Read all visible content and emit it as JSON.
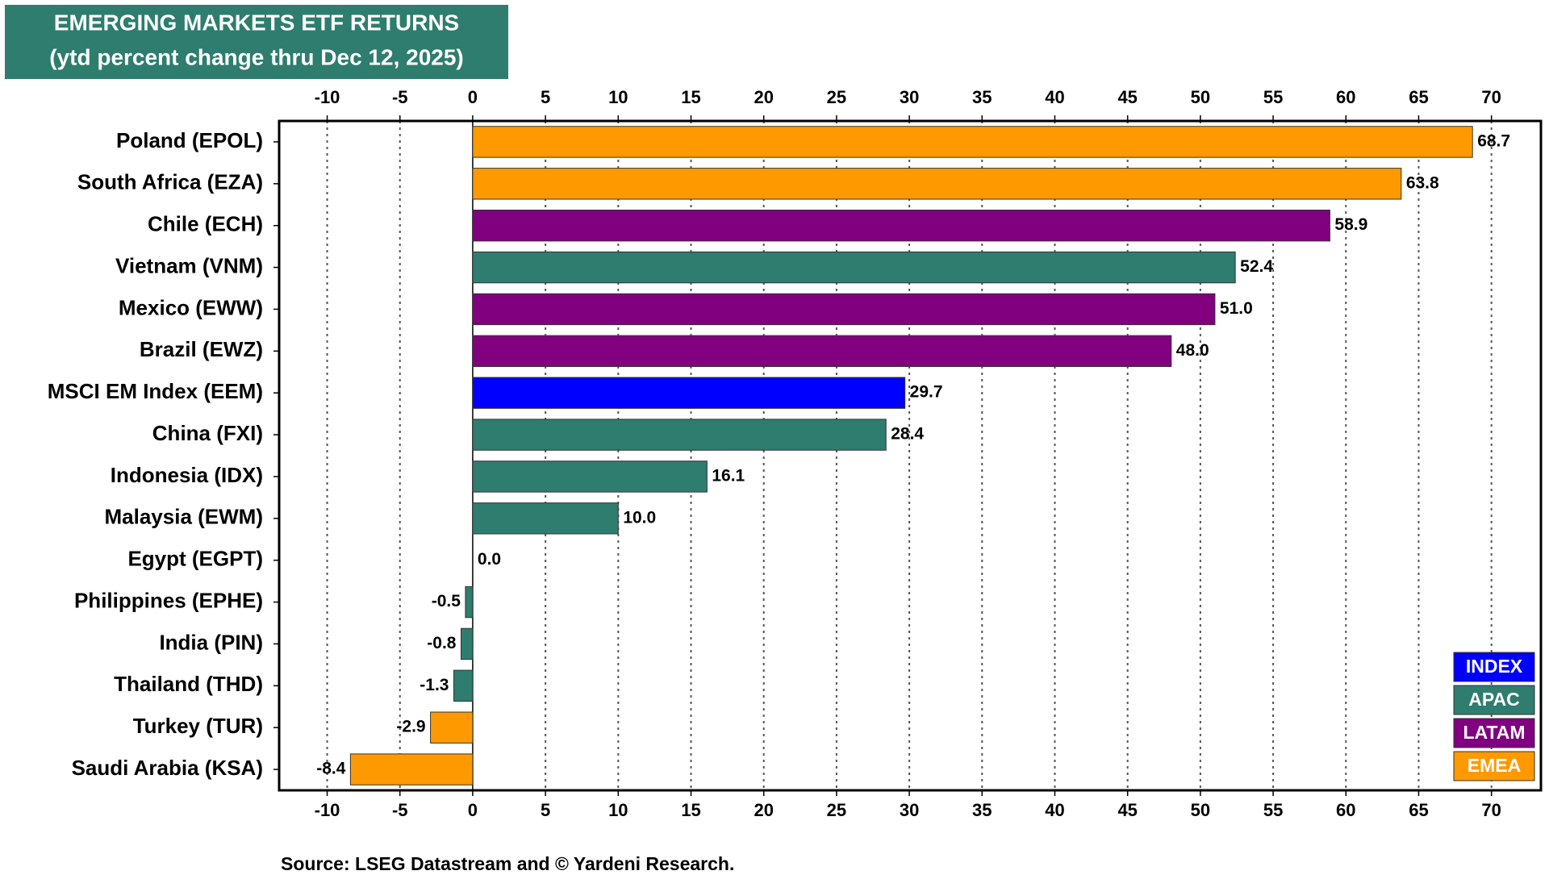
{
  "chart_data": {
    "type": "bar",
    "orientation": "horizontal",
    "title": "EMERGING MARKETS ETF RETURNS",
    "subtitle": "(ytd percent change thru Dec 12, 2025)",
    "source": "Source: LSEG Datastream and © Yardeni Research.",
    "categories": [
      "Poland (EPOL)",
      "South Africa (EZA)",
      "Chile (ECH)",
      "Vietnam (VNM)",
      "Mexico (EWW)",
      "Brazil (EWZ)",
      "MSCI EM Index (EEM)",
      "China (FXI)",
      "Indonesia (IDX)",
      "Malaysia (EWM)",
      "Egypt (EGPT)",
      "Philippines (EPHE)",
      "India (PIN)",
      "Thailand (THD)",
      "Turkey (TUR)",
      "Saudi Arabia (KSA)"
    ],
    "values": [
      68.7,
      63.8,
      58.9,
      52.4,
      51.0,
      48.0,
      29.7,
      28.4,
      16.1,
      10.0,
      0.0,
      -0.5,
      -0.8,
      -1.3,
      -2.9,
      -8.4
    ],
    "value_labels": [
      "68.7",
      "63.8",
      "58.9",
      "52.4",
      "51.0",
      "48.0",
      "29.7",
      "28.4",
      "16.1",
      "10.0",
      "0.0",
      "-0.5",
      "-0.8",
      "-1.3",
      "-2.9",
      "-8.4"
    ],
    "colors": [
      "#ff9900",
      "#ff9900",
      "#800080",
      "#2e7d6e",
      "#800080",
      "#800080",
      "#0000ff",
      "#2e7d6e",
      "#2e7d6e",
      "#2e7d6e",
      "#2e7d6e",
      "#2e7d6e",
      "#2e7d6e",
      "#2e7d6e",
      "#ff9900",
      "#ff9900"
    ],
    "legend": [
      {
        "name": "INDEX",
        "color": "#0000ff"
      },
      {
        "name": "APAC",
        "color": "#2e7d6e"
      },
      {
        "name": "LATAM",
        "color": "#800080"
      },
      {
        "name": "EMEA",
        "color": "#ff9900"
      }
    ],
    "legend_position": "bottom-right",
    "xlim": [
      -13.3,
      73.4
    ],
    "xticks": [
      -10,
      -5,
      0,
      5,
      10,
      15,
      20,
      25,
      30,
      35,
      40,
      45,
      50,
      55,
      60,
      65,
      70
    ],
    "grid": true
  }
}
